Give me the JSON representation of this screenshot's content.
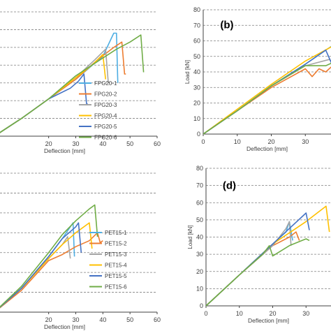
{
  "chart_data": [
    {
      "type": "line",
      "panel_label": "",
      "xlabel": "Deflection [mm]",
      "ylabel": "",
      "xlim": [
        0,
        60
      ],
      "ylim": [
        10,
        80
      ],
      "xticks": [
        20,
        30,
        40,
        50,
        60
      ],
      "yticks": [],
      "grid": true,
      "legend_placement": "center-right",
      "series": [
        {
          "name": "FPG20-1",
          "color": "#4eaee3",
          "x": [
            0,
            10,
            20,
            30,
            40,
            44,
            45,
            45.5
          ],
          "y": [
            10,
            20,
            31,
            42,
            55,
            68,
            68,
            40
          ]
        },
        {
          "name": "FPG20-2",
          "color": "#ed7d31",
          "x": [
            0,
            10,
            20,
            30,
            38,
            44,
            47,
            48,
            48.5
          ],
          "y": [
            10,
            20,
            31,
            42,
            53,
            60,
            63,
            45,
            45
          ]
        },
        {
          "name": "FPG20-3",
          "color": "#a5a5a5",
          "x": [
            0,
            10,
            20,
            30,
            37,
            41,
            42
          ],
          "y": [
            10,
            20,
            31,
            43,
            53,
            59,
            40
          ]
        },
        {
          "name": "FPG20-4",
          "color": "#ffc000",
          "x": [
            0,
            10,
            20,
            30,
            36,
            40,
            41
          ],
          "y": [
            10,
            20,
            31,
            43,
            50,
            56,
            42
          ]
        },
        {
          "name": "FPG20-5",
          "color": "#4472c4",
          "x": [
            0,
            10,
            20,
            28,
            31,
            33,
            34,
            34.5
          ],
          "y": [
            10,
            20,
            31,
            37,
            41,
            45,
            28,
            28
          ]
        },
        {
          "name": "FPG20-6",
          "color": "#70ad47",
          "x": [
            0,
            10,
            20,
            30,
            40,
            45,
            50,
            54,
            55
          ],
          "y": [
            10,
            20,
            31,
            44,
            54,
            59,
            63,
            67,
            46
          ]
        }
      ]
    },
    {
      "type": "line",
      "panel_label": "(b)",
      "xlabel": "Deflection [mm]",
      "ylabel": "Load [kN]",
      "xlim": [
        0,
        40
      ],
      "ylim": [
        0,
        80
      ],
      "xticks": [
        0,
        10,
        20,
        30
      ],
      "yticks": [
        0,
        10,
        20,
        30,
        40,
        50,
        60,
        70,
        80
      ],
      "grid": true,
      "series": [
        {
          "name": "",
          "color": "#4eaee3",
          "x": [
            0,
            10,
            20,
            30,
            36,
            40
          ],
          "y": [
            0,
            15,
            31,
            45,
            54,
            60
          ]
        },
        {
          "name": "",
          "color": "#ed7d31",
          "x": [
            0,
            10,
            20,
            30,
            32,
            34,
            36,
            38,
            40
          ],
          "y": [
            0,
            15,
            30,
            42,
            37,
            42,
            40,
            44,
            42
          ]
        },
        {
          "name": "",
          "color": "#a5a5a5",
          "x": [
            0,
            10,
            20,
            30,
            37,
            40
          ],
          "y": [
            0,
            15,
            31,
            44,
            48,
            44
          ]
        },
        {
          "name": "",
          "color": "#ffc000",
          "x": [
            0,
            10,
            20,
            30,
            40
          ],
          "y": [
            0,
            16,
            32,
            47,
            59
          ]
        },
        {
          "name": "",
          "color": "#4472c4",
          "x": [
            0,
            10,
            20,
            30,
            36,
            38,
            40
          ],
          "y": [
            0,
            15,
            31,
            45,
            54,
            44,
            42
          ]
        },
        {
          "name": "",
          "color": "#70ad47",
          "x": [
            0,
            10,
            20,
            30,
            36,
            38,
            40
          ],
          "y": [
            0,
            15,
            31,
            44,
            44,
            46,
            45
          ]
        }
      ]
    },
    {
      "type": "line",
      "panel_label": "",
      "xlabel": "Deflection [mm]",
      "ylabel": "",
      "xlim": [
        0,
        60
      ],
      "ylim": [
        10,
        80
      ],
      "xticks": [
        20,
        30,
        40,
        50,
        60
      ],
      "yticks": [],
      "grid": true,
      "legend_placement": "center-right",
      "series": [
        {
          "name": "PET15-1",
          "color": "#4eaee3",
          "x": [
            0,
            10,
            20,
            25,
            28,
            29,
            29.5
          ],
          "y": [
            10,
            22,
            38,
            47,
            53,
            55,
            38
          ]
        },
        {
          "name": "PET15-2",
          "color": "#ed7d31",
          "x": [
            0,
            10,
            20,
            25,
            30,
            35,
            38,
            39,
            40
          ],
          "y": [
            10,
            21,
            36,
            39,
            43,
            46,
            50,
            45,
            46
          ]
        },
        {
          "name": "PET15-3",
          "color": "#a5a5a5",
          "x": [
            0,
            10,
            20,
            25,
            27,
            28
          ],
          "y": [
            10,
            22,
            37,
            44,
            48,
            37
          ]
        },
        {
          "name": "PET15-4",
          "color": "#ffc000",
          "x": [
            0,
            10,
            20,
            25,
            30,
            35,
            36
          ],
          "y": [
            10,
            22,
            37,
            44,
            50,
            55,
            42
          ]
        },
        {
          "name": "PET15-5",
          "color": "#4472c4",
          "x": [
            0,
            10,
            20,
            25,
            30,
            31,
            32
          ],
          "y": [
            10,
            22,
            38,
            47,
            53,
            55,
            40
          ]
        },
        {
          "name": "PET15-6",
          "color": "#70ad47",
          "x": [
            0,
            10,
            20,
            25,
            30,
            35,
            37,
            38
          ],
          "y": [
            10,
            23,
            40,
            49,
            56,
            62,
            64,
            48
          ]
        }
      ]
    },
    {
      "type": "line",
      "panel_label": "(d)",
      "xlabel": "Deflection [mm]",
      "ylabel": "Load [kN]",
      "xlim": [
        0,
        40
      ],
      "ylim": [
        0,
        80
      ],
      "xticks": [
        0,
        10,
        20,
        30
      ],
      "yticks": [
        0,
        10,
        20,
        30,
        40,
        50,
        60,
        70,
        80
      ],
      "grid": true,
      "series": [
        {
          "name": "",
          "color": "#4eaee3",
          "x": [
            0,
            10,
            20,
            24,
            25,
            26
          ],
          "y": [
            0,
            18,
            36,
            43,
            49,
            38
          ]
        },
        {
          "name": "",
          "color": "#ed7d31",
          "x": [
            0,
            10,
            20,
            25,
            27,
            28
          ],
          "y": [
            0,
            18,
            35,
            40,
            43,
            38
          ]
        },
        {
          "name": "",
          "color": "#a5a5a5",
          "x": [
            0,
            10,
            20,
            24,
            25,
            25.5
          ],
          "y": [
            0,
            18,
            35,
            45,
            49,
            35
          ]
        },
        {
          "name": "",
          "color": "#ffc000",
          "x": [
            0,
            10,
            20,
            30,
            36,
            37
          ],
          "y": [
            0,
            18,
            36,
            49,
            58,
            43
          ]
        },
        {
          "name": "",
          "color": "#4472c4",
          "x": [
            0,
            10,
            20,
            25,
            30,
            31
          ],
          "y": [
            0,
            18,
            36,
            45,
            54,
            44
          ]
        },
        {
          "name": "",
          "color": "#70ad47",
          "x": [
            0,
            10,
            17,
            19,
            20,
            25,
            30,
            31
          ],
          "y": [
            0,
            18,
            30,
            35,
            29,
            35,
            39,
            38
          ]
        }
      ]
    }
  ]
}
